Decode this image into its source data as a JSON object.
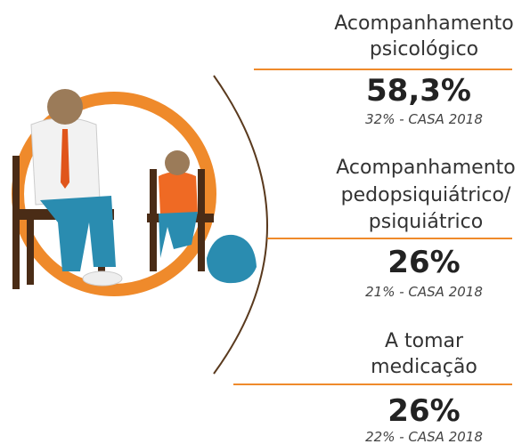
{
  "items": [
    {
      "label_lines": [
        "Acompanhamento",
        "psicológico"
      ],
      "value": "58,3%",
      "comparison": "32% - CASA 2018"
    },
    {
      "label_lines": [
        "Acompanhamento",
        "pedopsiquiátrico/",
        "psiquiátrico"
      ],
      "value": "26%",
      "comparison": "21% - CASA 2018"
    },
    {
      "label_lines": [
        "A tomar",
        "medicação"
      ],
      "value": "26%",
      "comparison": "22% - CASA 2018"
    }
  ]
}
